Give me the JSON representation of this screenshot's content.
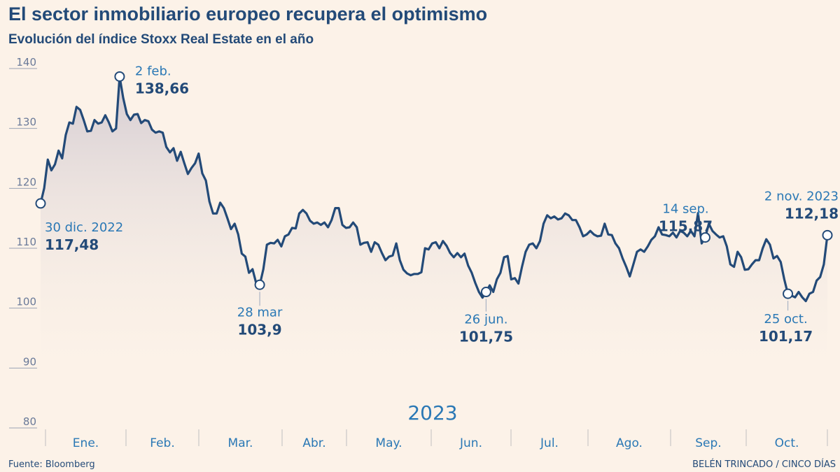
{
  "chart_data": {
    "type": "line",
    "title": "El sector inmobiliario europeo recupera el optimismo",
    "subtitle": "Evolución del índice Stoxx Real Estate en el año",
    "xlabel": "2023",
    "ylabel": "",
    "ylim": [
      80,
      140
    ],
    "yticks": [
      "140",
      "130",
      "120",
      "110",
      "100",
      "90",
      "80"
    ],
    "x_range": [
      "2022-12-30",
      "2023-11-02"
    ],
    "months": [
      "Ene.",
      "Feb.",
      "Mar.",
      "Abr.",
      "May.",
      "Jun.",
      "Jul.",
      "Ago.",
      "Sep.",
      "Oct."
    ],
    "grid": false,
    "colors": {
      "line": "#234a78",
      "accent": "#2a78b5",
      "fill": "#d8d1d6",
      "background": "#fcf2e8"
    },
    "values": [
      117.48,
      120,
      124.8,
      123,
      124,
      126.3,
      125,
      128.9,
      131,
      130.8,
      133.6,
      133.1,
      131.4,
      129.5,
      129.6,
      131.4,
      130.8,
      131,
      132.2,
      131,
      129.5,
      130,
      138.66,
      135.1,
      132.4,
      131.4,
      132.3,
      132.4,
      130.9,
      131.4,
      131.2,
      129.8,
      129.3,
      129.5,
      129.3,
      126.9,
      126,
      126.7,
      124.6,
      126.1,
      124.2,
      122.4,
      123.4,
      124.2,
      125.8,
      122.5,
      121.3,
      117.8,
      115.8,
      115.8,
      117.6,
      116.7,
      115,
      113.2,
      114.1,
      112.3,
      109.1,
      108.6,
      105.9,
      106.5,
      104.2,
      103.9,
      106.5,
      110.6,
      110.9,
      110.8,
      111.4,
      110.3,
      112,
      112.3,
      113.4,
      113.3,
      115.8,
      116.4,
      115.8,
      114.6,
      114.1,
      114.3,
      113.9,
      114.3,
      113.5,
      114.7,
      116.7,
      116.7,
      113.9,
      113.4,
      113.5,
      114.3,
      113.5,
      110.6,
      110.9,
      111,
      109.4,
      111,
      110.6,
      109.2,
      108,
      108.6,
      108.8,
      110.8,
      108,
      106.4,
      105.8,
      105.5,
      105.7,
      105.7,
      106,
      110,
      109.8,
      110.8,
      111,
      110,
      111.2,
      110.4,
      109.2,
      108.5,
      109.2,
      108.5,
      109.1,
      107.1,
      105.9,
      104.2,
      102.7,
      101.75,
      102.7,
      103.8,
      102.7,
      104.8,
      105.9,
      108.5,
      108.7,
      104.8,
      105,
      104.1,
      106.9,
      109.4,
      110.6,
      110.8,
      110,
      111.2,
      114.1,
      115.5,
      115,
      115.3,
      114.8,
      115,
      115.8,
      115.5,
      114.7,
      114.7,
      113.5,
      112,
      112.3,
      112.9,
      112.3,
      112,
      112.1,
      114.1,
      112.3,
      112.2,
      110.8,
      110,
      108.3,
      106.9,
      105.3,
      107.3,
      109.4,
      109.8,
      109.4,
      110.3,
      111.4,
      112,
      113.5,
      112.3,
      112.2,
      112,
      112.6,
      111.8,
      112.9,
      112.6,
      112,
      112.9,
      112,
      115.87,
      110.8,
      111.8,
      114.1,
      112.9,
      112.3,
      111.8,
      112,
      110.3,
      107.3,
      106.9,
      109.4,
      108.5,
      106.4,
      106.5,
      107.3,
      108,
      108,
      110,
      111.5,
      110.6,
      108.3,
      108.7,
      107.7,
      104.8,
      102.4,
      102.1,
      101.8,
      102.7,
      101.8,
      101.17,
      102.4,
      102.7,
      104.6,
      105.2,
      107.3,
      112.18
    ],
    "annotations": [
      {
        "date": "30 dic. 2022",
        "value": "117,48"
      },
      {
        "date": "2 feb.",
        "value": "138,66"
      },
      {
        "date": "28 mar",
        "value": "103,9"
      },
      {
        "date": "26 jun.",
        "value": "101,75"
      },
      {
        "date": "14 sep.",
        "value": "115,87"
      },
      {
        "date": "25 oct.",
        "value": "101,17"
      },
      {
        "date": "2 nov. 2023",
        "value": "112,18"
      }
    ]
  },
  "footer": {
    "source": "Fuente: Bloomberg",
    "credit": "BELÉN TRINCADO / CINCO DÍAS"
  }
}
